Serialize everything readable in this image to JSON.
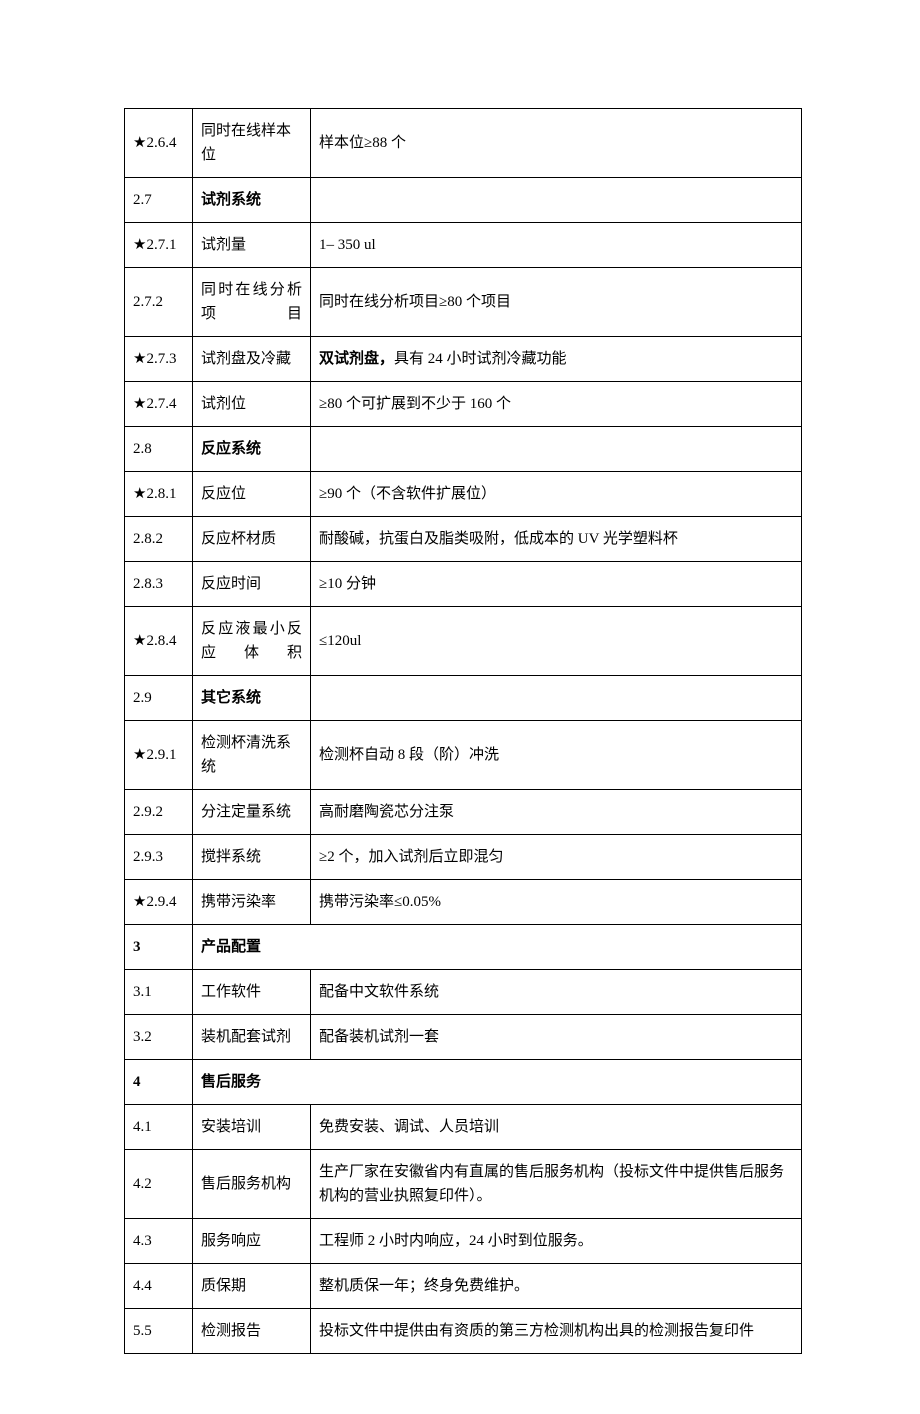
{
  "table": {
    "rows": [
      {
        "id": "★2.6.4",
        "name": "同时在线样本位",
        "spec": "样本位≥88 个",
        "span": false,
        "boldId": false,
        "boldName": false
      },
      {
        "id": "2.7",
        "name": "试剂系统",
        "spec": "",
        "span": false,
        "boldId": false,
        "boldName": true
      },
      {
        "id": "★2.7.1",
        "name": "试剂量",
        "spec": "1– 350 ul",
        "span": false,
        "boldId": false,
        "boldName": false
      },
      {
        "id": "2.7.2",
        "name": "同时在线分析项目",
        "spec": "同时在线分析项目≥80 个项目",
        "span": false,
        "boldId": false,
        "boldName": false,
        "justifyName": true
      },
      {
        "id": "★2.7.3",
        "name": "试剂盘及冷藏",
        "spec": "双试剂盘，具有 24 小时试剂冷藏功能",
        "span": false,
        "boldId": false,
        "boldName": false,
        "boldSpecPrefix": "双试剂盘，",
        "specRest": "具有 24 小时试剂冷藏功能"
      },
      {
        "id": "★2.7.4",
        "name": "试剂位",
        "spec": "≥80 个可扩展到不少于 160 个",
        "span": false,
        "boldId": false,
        "boldName": false
      },
      {
        "id": "2.8",
        "name": "反应系统",
        "spec": "",
        "span": false,
        "boldId": false,
        "boldName": true
      },
      {
        "id": "★2.8.1",
        "name": "反应位",
        "spec": "≥90 个（不含软件扩展位）",
        "span": false,
        "boldId": false,
        "boldName": false
      },
      {
        "id": "2.8.2",
        "name": "反应杯材质",
        "spec": "耐酸碱，抗蛋白及脂类吸附，低成本的 UV 光学塑料杯",
        "span": false,
        "boldId": false,
        "boldName": false
      },
      {
        "id": "2.8.3",
        "name": "反应时间",
        "spec": "≥10 分钟",
        "span": false,
        "boldId": false,
        "boldName": false
      },
      {
        "id": "★2.8.4",
        "name": "反应液最小反应体积",
        "spec": "≤120ul",
        "span": false,
        "boldId": false,
        "boldName": false,
        "justifyName": true
      },
      {
        "id": "2.9",
        "name": "其它系统",
        "spec": "",
        "span": false,
        "boldId": false,
        "boldName": true
      },
      {
        "id": "★2.9.1",
        "name": "检测杯清洗系统",
        "spec": "检测杯自动 8 段（阶）冲洗",
        "span": false,
        "boldId": false,
        "boldName": false
      },
      {
        "id": "2.9.2",
        "name": "分注定量系统",
        "spec": "高耐磨陶瓷芯分注泵",
        "span": false,
        "boldId": false,
        "boldName": false
      },
      {
        "id": "2.9.3",
        "name": "搅拌系统",
        "spec": "≥2 个，加入试剂后立即混匀",
        "span": false,
        "boldId": false,
        "boldName": false
      },
      {
        "id": "★2.9.4",
        "name": "携带污染率",
        "spec": "携带污染率≤0.05%",
        "span": false,
        "boldId": false,
        "boldName": false
      },
      {
        "id": "3",
        "name": "产品配置",
        "spec": "",
        "span": true,
        "boldId": true,
        "boldName": true
      },
      {
        "id": "3.1",
        "name": "工作软件",
        "spec": "配备中文软件系统",
        "span": false,
        "boldId": false,
        "boldName": false
      },
      {
        "id": "3.2",
        "name": "装机配套试剂",
        "spec": "配备装机试剂一套",
        "span": false,
        "boldId": false,
        "boldName": false
      },
      {
        "id": "4",
        "name": "售后服务",
        "spec": "",
        "span": true,
        "boldId": true,
        "boldName": true
      },
      {
        "id": "4.1",
        "name": "安装培训",
        "spec": "免费安装、调试、人员培训",
        "span": false,
        "boldId": false,
        "boldName": false
      },
      {
        "id": "4.2",
        "name": "售后服务机构",
        "spec": "生产厂家在安徽省内有直属的售后服务机构（投标文件中提供售后服务机构的营业执照复印件）。",
        "span": false,
        "boldId": false,
        "boldName": false
      },
      {
        "id": "4.3",
        "name": "服务响应",
        "spec": "工程师 2 小时内响应，24 小时到位服务。",
        "span": false,
        "boldId": false,
        "boldName": false
      },
      {
        "id": "4.4",
        "name": "质保期",
        "spec": "整机质保一年；终身免费维护。",
        "span": false,
        "boldId": false,
        "boldName": false
      },
      {
        "id": "5.5",
        "name": "检测报告",
        "spec": "投标文件中提供由有资质的第三方检测机构出具的检测报告复印件",
        "span": false,
        "boldId": false,
        "boldName": false
      }
    ]
  }
}
